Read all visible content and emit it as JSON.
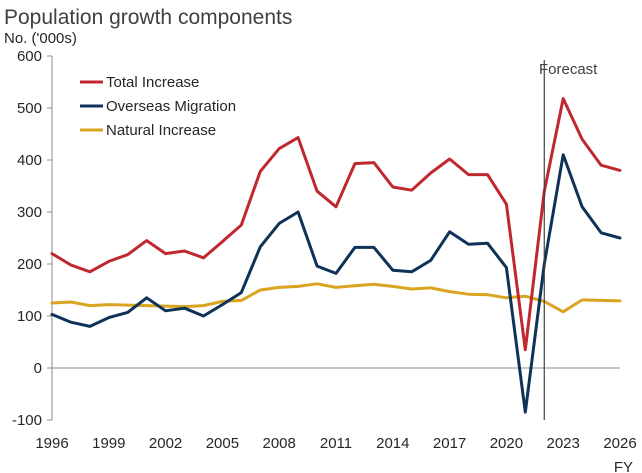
{
  "chart_data": {
    "type": "line",
    "title": "Population growth components",
    "ylabel": "No. ('000s)",
    "xlabel": "FY",
    "ylim": [
      -100,
      600
    ],
    "yticks": [
      -100,
      0,
      100,
      200,
      300,
      400,
      500,
      600
    ],
    "xlim": [
      1996,
      2026
    ],
    "xticks": [
      1996,
      1999,
      2002,
      2005,
      2008,
      2011,
      2014,
      2017,
      2020,
      2023,
      2026
    ],
    "grid": false,
    "legend_position": "top-left",
    "annotation": {
      "label": "Forecast",
      "x": 2022
    },
    "x": [
      1996,
      1997,
      1998,
      1999,
      2000,
      2001,
      2002,
      2003,
      2004,
      2005,
      2006,
      2007,
      2008,
      2009,
      2010,
      2011,
      2012,
      2013,
      2014,
      2015,
      2016,
      2017,
      2018,
      2019,
      2020,
      2021,
      2022,
      2023,
      2024,
      2025,
      2026
    ],
    "series": [
      {
        "name": "Total Increase",
        "color": "#c0282f",
        "values": [
          220,
          198,
          185,
          205,
          218,
          245,
          220,
          225,
          212,
          243,
          275,
          378,
          422,
          443,
          340,
          310,
          393,
          395,
          348,
          342,
          375,
          402,
          372,
          372,
          315,
          35,
          340,
          518,
          440,
          390,
          380
        ]
      },
      {
        "name": "Overseas Migration",
        "color": "#0f3259",
        "values": [
          103,
          88,
          80,
          97,
          107,
          135,
          110,
          115,
          100,
          122,
          145,
          233,
          278,
          300,
          196,
          182,
          232,
          232,
          188,
          185,
          207,
          262,
          238,
          240,
          193,
          -85,
          200,
          410,
          310,
          260,
          250
        ]
      },
      {
        "name": "Natural Increase",
        "color": "#d9a420",
        "values": [
          125,
          127,
          120,
          122,
          121,
          120,
          119,
          118,
          120,
          128,
          130,
          150,
          155,
          157,
          162,
          155,
          158,
          161,
          157,
          152,
          154,
          147,
          142,
          141,
          135,
          138,
          128,
          108,
          131,
          130,
          129
        ]
      }
    ]
  }
}
